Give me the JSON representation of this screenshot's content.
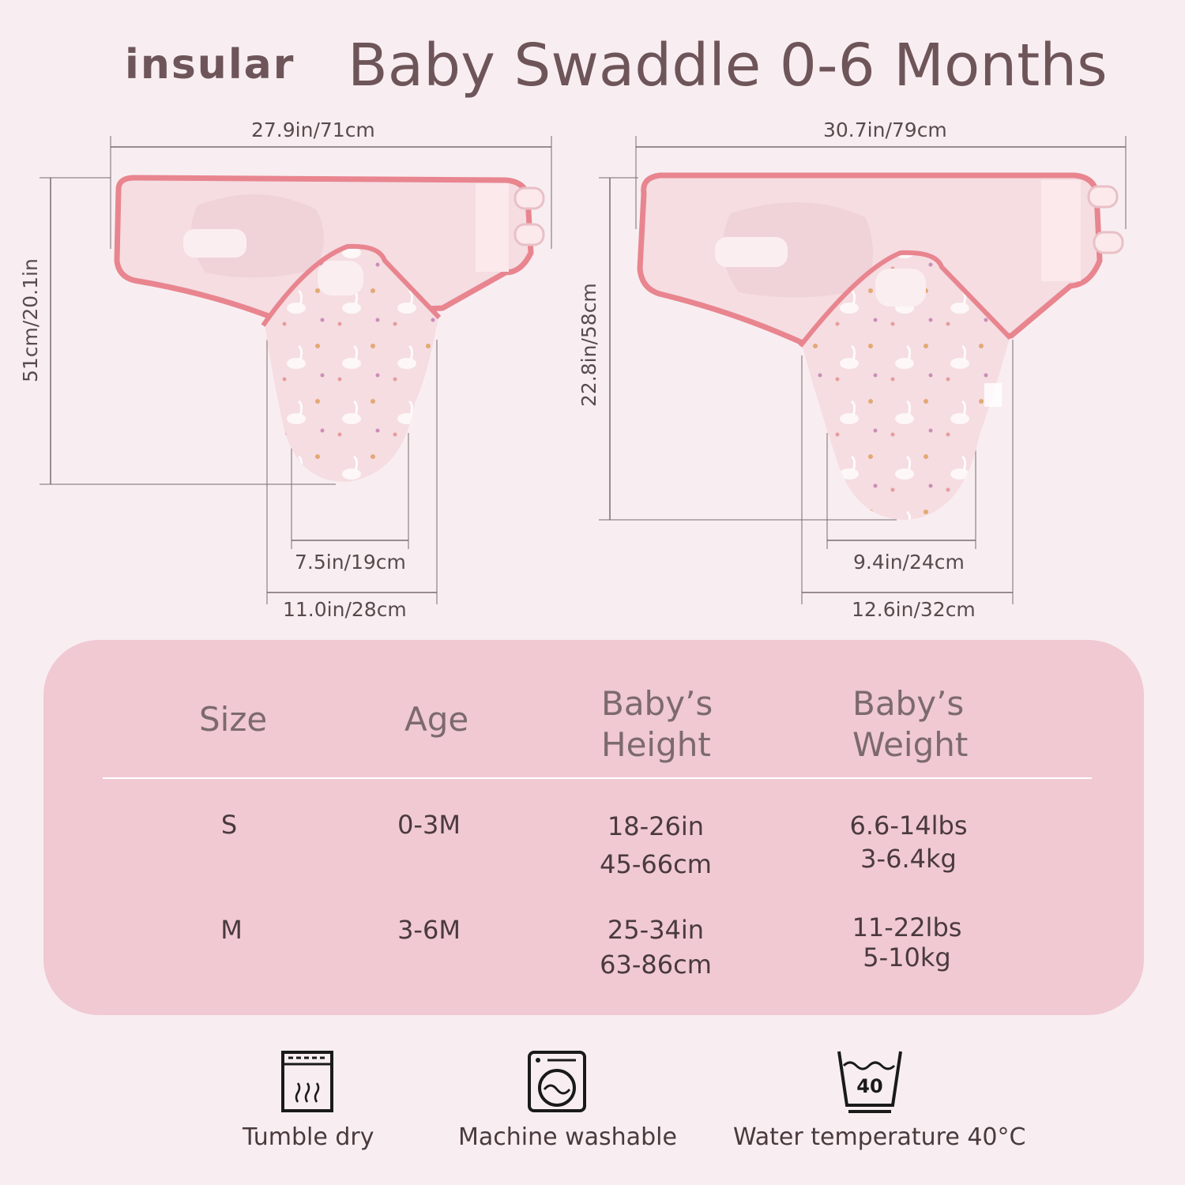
{
  "header": {
    "brand": "insular",
    "title": "Baby Swaddle 0-6 Months"
  },
  "diagram": {
    "small": {
      "width": "27.9in/71cm",
      "height": "51cm/20.1in",
      "bottom_inner": "7.5in/19cm",
      "bottom_outer": "11.0in/28cm"
    },
    "medium": {
      "width": "30.7in/79cm",
      "height": "22.8in/58cm",
      "bottom_inner": "9.4in/24cm",
      "bottom_outer": "12.6in/32cm"
    }
  },
  "size_table": {
    "headers": {
      "size": "Size",
      "age": "Age",
      "height_1": "Baby’s",
      "height_2": "Height",
      "weight_1": "Baby’s",
      "weight_2": "Weight"
    },
    "rows": [
      {
        "size": "S",
        "age": "0-3M",
        "height_in": "18-26in",
        "height_cm": "45-66cm",
        "weight_lbs": "6.6-14lbs",
        "weight_kg": "3-6.4kg"
      },
      {
        "size": "M",
        "age": "3-6M",
        "height_in": "25-34in",
        "height_cm": "63-86cm",
        "weight_lbs": "11-22lbs",
        "weight_kg": "5-10kg"
      }
    ]
  },
  "care": {
    "tumble_dry": "Tumble dry",
    "machine_washable": "Machine washable",
    "water_temp": "Water temperature 40°C",
    "water_temp_icon_value": "40"
  },
  "colors": {
    "background": "#f8eef1",
    "panel": "#f0c9d3",
    "swaddle_fill": "#f5dde2",
    "swaddle_trim": "#e8858f",
    "text": "#6e5559"
  }
}
